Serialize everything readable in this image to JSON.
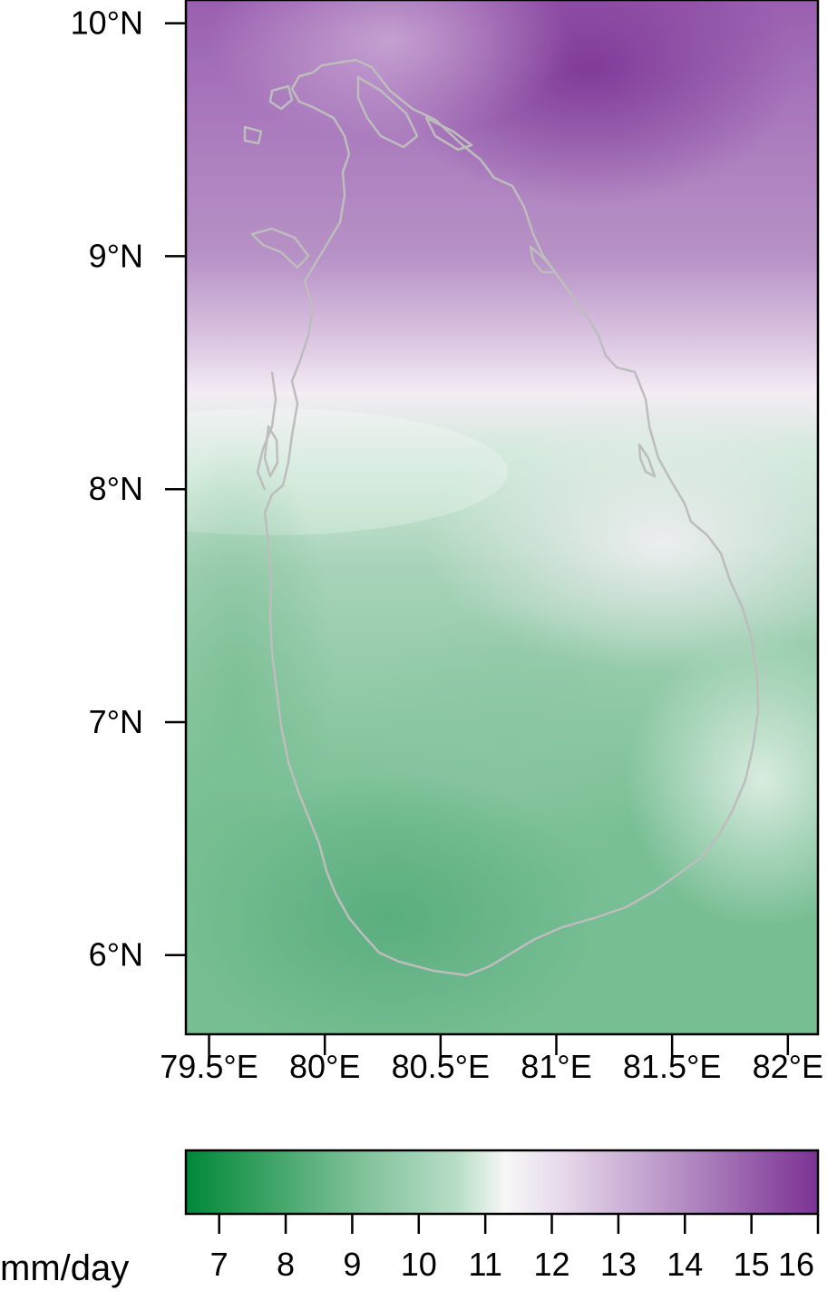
{
  "map": {
    "region": "Sri Lanka",
    "projection": "lat-lon",
    "lon_range": [
      79.4,
      82.13
    ],
    "lat_range": [
      5.66,
      10.1
    ],
    "coastline_color": "#bdbdbd",
    "lat_ticks": [
      {
        "value": 10,
        "label": "10°N"
      },
      {
        "value": 9,
        "label": "9°N"
      },
      {
        "value": 8,
        "label": "8°N"
      },
      {
        "value": 7,
        "label": "7°N"
      },
      {
        "value": 6,
        "label": "6°N"
      }
    ],
    "lon_ticks": [
      {
        "value": 79.5,
        "label": "79.5°E"
      },
      {
        "value": 80,
        "label": "80°E"
      },
      {
        "value": 80.5,
        "label": "80.5°E"
      },
      {
        "value": 81,
        "label": "81°E"
      },
      {
        "value": 81.5,
        "label": "81.5°E"
      },
      {
        "value": 82,
        "label": "82°E"
      }
    ]
  },
  "colorbar": {
    "unit": "mm/day",
    "range": [
      6.5,
      16
    ],
    "ticks": [
      "7",
      "8",
      "9",
      "10",
      "11",
      "12",
      "13",
      "14",
      "15",
      "16"
    ],
    "midpoint": 11.3,
    "low_color": "#008837",
    "mid_color": "#f7f7f7",
    "high_color": "#7b3294"
  },
  "chart_data": {
    "type": "heatmap",
    "title": "",
    "xlabel": "",
    "ylabel": "",
    "xlim": [
      79.4,
      82.13
    ],
    "ylim": [
      5.66,
      10.1
    ],
    "value_range": [
      6.5,
      16
    ],
    "unit": "mm/day",
    "approx_field": [
      {
        "region": "far north (10°N)",
        "approx_value": 15.5
      },
      {
        "region": "northern half (9°N)",
        "approx_value": 14
      },
      {
        "region": "~8.2°N band",
        "approx_value": 11.5
      },
      {
        "region": "central highlands (~7°N)",
        "approx_value": 10
      },
      {
        "region": "southwest (~6.2°N, 80.3°E)",
        "approx_value": 8.5
      },
      {
        "region": "southern sea (~5.8°N)",
        "approx_value": 8
      }
    ]
  }
}
